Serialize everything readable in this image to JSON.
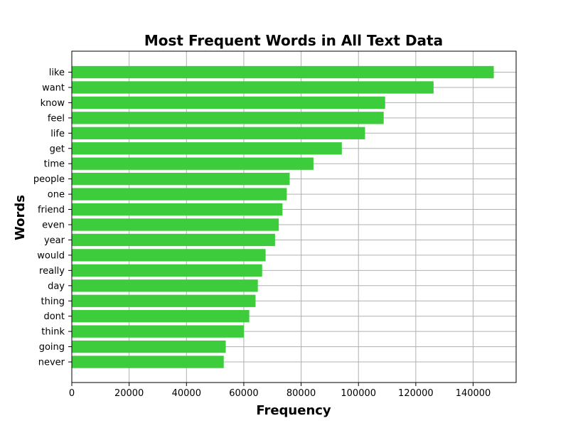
{
  "chart_data": {
    "type": "bar",
    "orientation": "horizontal",
    "title": "Most Frequent Words in All Text Data",
    "xlabel": "Frequency",
    "ylabel": "Words",
    "categories": [
      "like",
      "want",
      "know",
      "feel",
      "life",
      "get",
      "time",
      "people",
      "one",
      "friend",
      "even",
      "year",
      "would",
      "really",
      "day",
      "thing",
      "dont",
      "think",
      "going",
      "never"
    ],
    "values": [
      147200,
      126200,
      109300,
      108800,
      102300,
      94200,
      84300,
      76000,
      75000,
      73500,
      72200,
      70900,
      67600,
      66400,
      64900,
      64100,
      61900,
      60000,
      53700,
      53000
    ],
    "xlim": [
      0,
      155000
    ],
    "xticks": [
      0,
      20000,
      40000,
      60000,
      80000,
      100000,
      120000,
      140000
    ],
    "xtick_labels": [
      "0",
      "20000",
      "40000",
      "60000",
      "80000",
      "100000",
      "120000",
      "140000"
    ],
    "bar_color": "#3ccc3c",
    "grid": true,
    "legend": "none"
  }
}
